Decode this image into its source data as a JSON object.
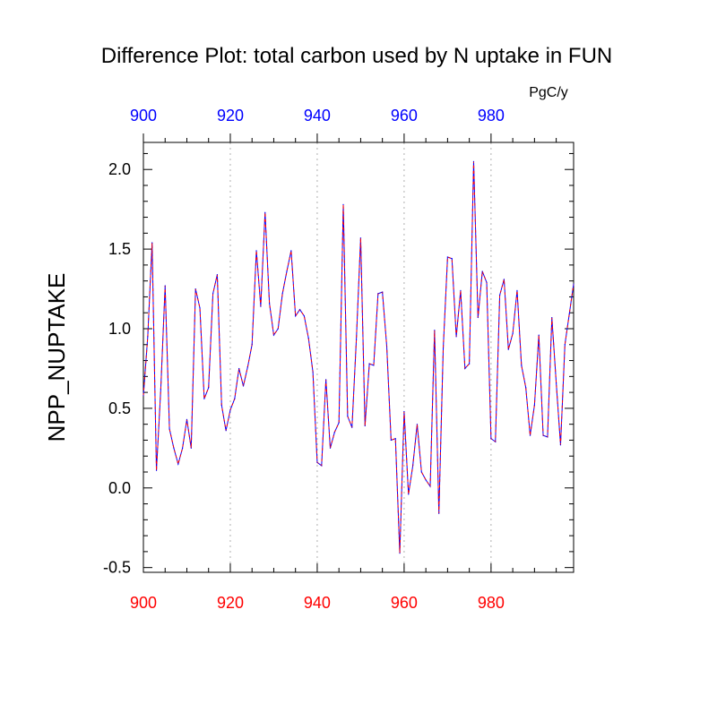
{
  "chart_data": {
    "type": "line",
    "title": "Difference Plot: total carbon used by N uptake in FUN",
    "ylabel": "NPP_NUPTAKE",
    "units": "PgC/y",
    "xlim": [
      900,
      999
    ],
    "ylim": [
      -0.53,
      2.17
    ],
    "x_ticks": [
      900,
      920,
      940,
      960,
      980
    ],
    "y_ticks": [
      -0.5,
      0.0,
      0.5,
      1.0,
      1.5,
      2.0
    ],
    "y_tick_labels": [
      "-0.5",
      "0.0",
      "0.5",
      "1.0",
      "1.5",
      "2.0"
    ],
    "grid": "vertical dashed at major x ticks",
    "colors": {
      "bottom_axis_labels": "#ff0000",
      "top_axis_labels": "#0000ff",
      "series_a": "#0000ff",
      "series_b": "#ff0000"
    },
    "x_start": 900,
    "series": [
      {
        "values": [
          0.58,
          0.95,
          1.54,
          0.11,
          0.62,
          1.27,
          0.37,
          0.25,
          0.15,
          0.25,
          0.43,
          0.25,
          1.25,
          1.13,
          0.56,
          0.63,
          1.22,
          1.34,
          0.52,
          0.36,
          0.49,
          0.56,
          0.75,
          0.64,
          0.76,
          0.9,
          1.49,
          1.14,
          1.73,
          1.16,
          0.96,
          1.0,
          1.22,
          1.36,
          1.49,
          1.08,
          1.12,
          1.08,
          0.94,
          0.73,
          0.16,
          0.14,
          0.68,
          0.25,
          0.35,
          0.41,
          1.78,
          0.45,
          0.38,
          0.93,
          1.57,
          0.39,
          0.78,
          0.77,
          1.22,
          1.23,
          0.89,
          0.3,
          0.31,
          -0.41,
          0.48,
          -0.04,
          0.14,
          0.4,
          0.1,
          0.05,
          0.01,
          0.99,
          -0.16,
          0.88,
          1.45,
          1.44,
          0.95,
          1.24,
          0.75,
          0.78,
          2.05,
          1.07,
          1.36,
          1.29,
          0.31,
          0.29,
          1.21,
          1.31,
          0.87,
          0.97,
          1.24,
          0.77,
          0.63,
          0.33,
          0.52,
          0.96,
          0.33,
          0.32,
          1.07,
          0.66,
          0.27,
          0.9,
          1.09,
          1.28
        ]
      }
    ]
  }
}
